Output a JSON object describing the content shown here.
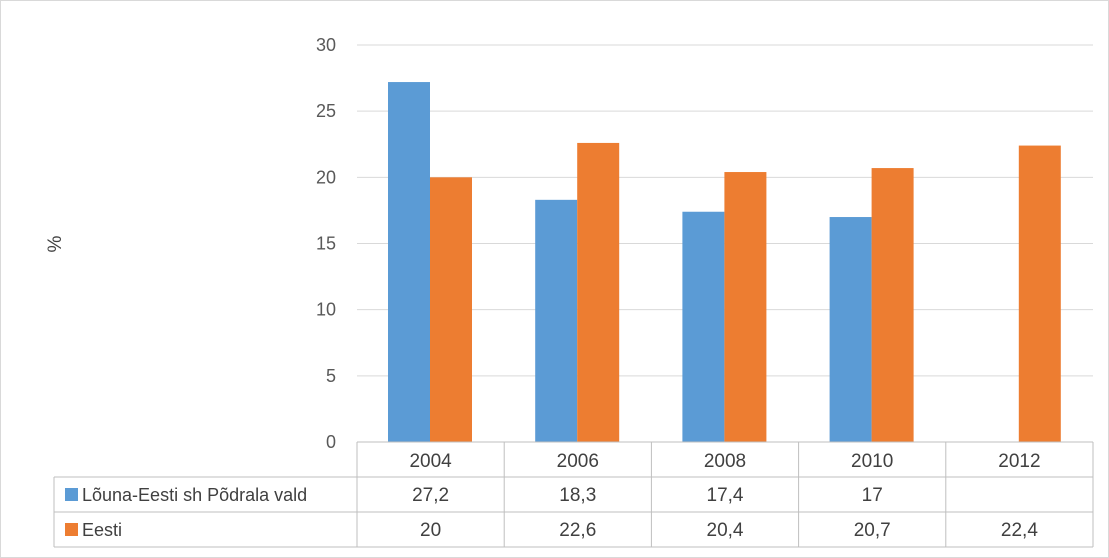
{
  "chart_data": {
    "type": "bar",
    "title": "",
    "xlabel": "",
    "ylabel": "%",
    "ylim": [
      0,
      30
    ],
    "yticks": [
      0,
      5,
      10,
      15,
      20,
      25,
      30
    ],
    "grid": true,
    "legend": "data-table",
    "categories": [
      "2004",
      "2006",
      "2008",
      "2010",
      "2012"
    ],
    "series": [
      {
        "name": "Lõuna-Eesti sh Põdrala vald",
        "color": "#5b9bd5",
        "values": [
          27.2,
          18.3,
          17.4,
          17,
          null
        ],
        "labels": [
          "27,2",
          "18,3",
          "17,4",
          "17",
          ""
        ]
      },
      {
        "name": "Eesti",
        "color": "#ed7d31",
        "values": [
          20,
          22.6,
          20.4,
          20.7,
          22.4
        ],
        "labels": [
          "20",
          "22,6",
          "20,4",
          "20,7",
          "22,4"
        ]
      }
    ]
  }
}
